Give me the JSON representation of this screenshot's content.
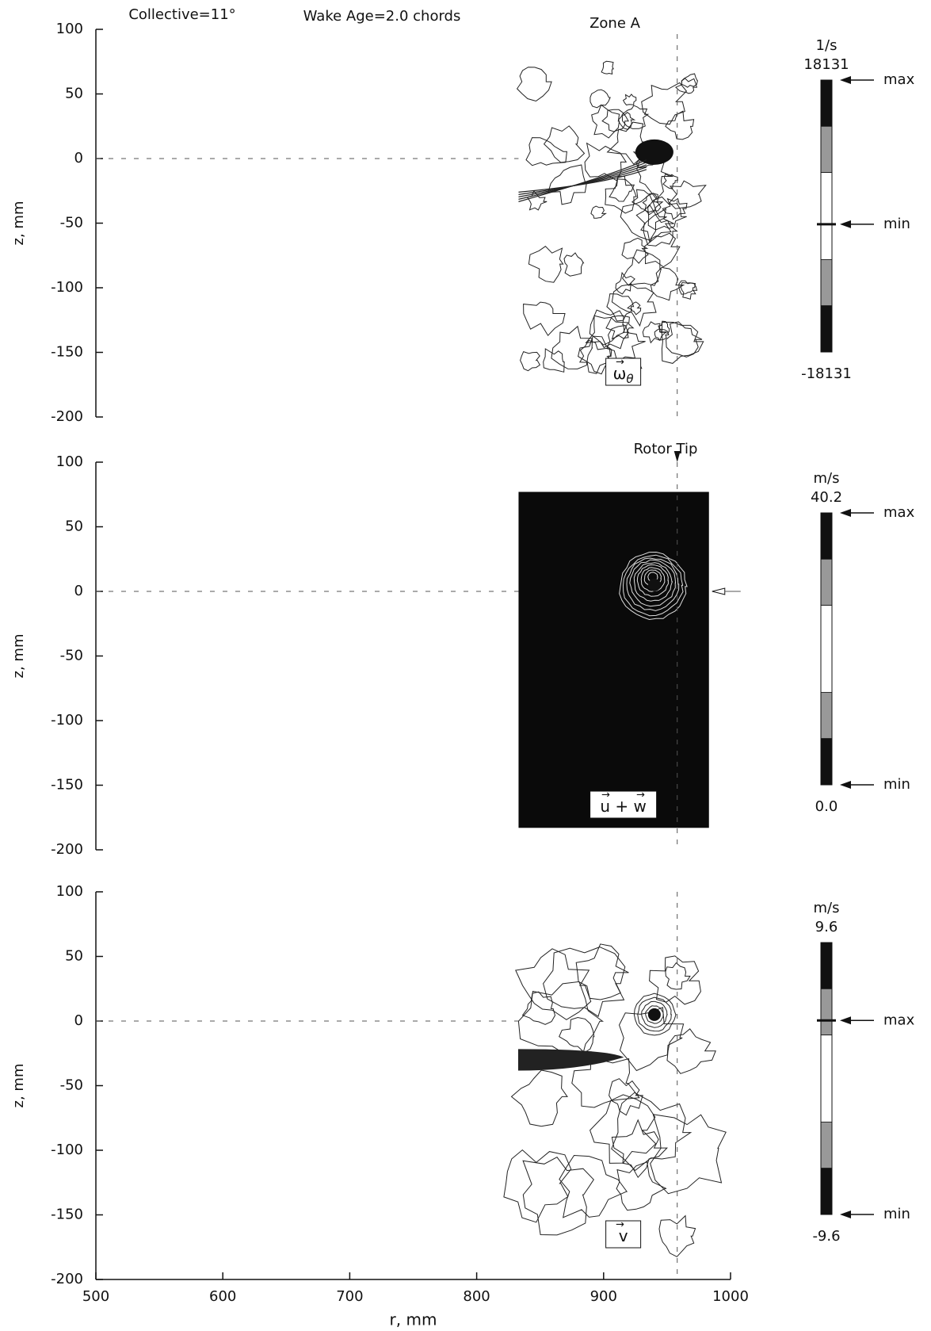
{
  "header": {
    "collective": "Collective=11°",
    "wake_age": "Wake Age=2.0 chords",
    "zone": "Zone A",
    "rotor_tip": "Rotor Tip"
  },
  "chart_data": [
    {
      "type": "contour",
      "ylabel": "z, mm",
      "xlim": [
        500,
        1000
      ],
      "ylim": [
        -200,
        100
      ],
      "yticks": [
        -200,
        -150,
        -100,
        -50,
        0,
        50,
        100
      ],
      "data_extent": {
        "r": [
          833,
          983
        ],
        "z": [
          -183,
          77
        ]
      },
      "rotor_tip_r": 958,
      "fill": "white",
      "quantity": {
        "symbol": "ω",
        "subscript": "θ"
      },
      "colorbar": {
        "unit": "1/s",
        "range": [
          {
            "value": -18131,
            "label": "-18131"
          },
          {
            "value": 18131,
            "label": "18131"
          }
        ],
        "max": 18131,
        "min": -1100,
        "max_label": "max",
        "min_label": "min"
      }
    },
    {
      "type": "contour",
      "ylabel": "z, mm",
      "xlim": [
        500,
        1000
      ],
      "ylim": [
        -200,
        100
      ],
      "yticks": [
        -200,
        -150,
        -100,
        -50,
        0,
        50,
        100
      ],
      "data_extent": {
        "r": [
          833,
          983
        ],
        "z": [
          -183,
          77
        ]
      },
      "rotor_tip_r": 958,
      "fill": "black",
      "quantity": {
        "symbol": "u + w",
        "subscript": ""
      },
      "colorbar": {
        "unit": "m/s",
        "range": [
          {
            "value": 0,
            "label": "0.0"
          },
          {
            "value": 40.2,
            "label": "40.2"
          }
        ],
        "max": 40.2,
        "min": 0,
        "max_label": "max",
        "min_label": "min"
      }
    },
    {
      "type": "contour",
      "ylabel": "z, mm",
      "xlabel": "r, mm",
      "xlim": [
        500,
        1000
      ],
      "ylim": [
        -200,
        100
      ],
      "yticks": [
        -200,
        -150,
        -100,
        -50,
        0,
        50,
        100
      ],
      "xticks": [
        500,
        600,
        700,
        800,
        900,
        1000
      ],
      "data_extent": {
        "r": [
          833,
          983
        ],
        "z": [
          -183,
          77
        ]
      },
      "rotor_tip_r": 958,
      "fill": "white",
      "quantity": {
        "symbol": "v",
        "subscript": ""
      },
      "colorbar": {
        "unit": "m/s",
        "range": [
          {
            "value": -9.6,
            "label": "-9.6"
          },
          {
            "value": 9.6,
            "label": "9.6"
          }
        ],
        "max": 4.1,
        "min": -9.6,
        "max_label": "max",
        "min_label": "min"
      }
    }
  ]
}
